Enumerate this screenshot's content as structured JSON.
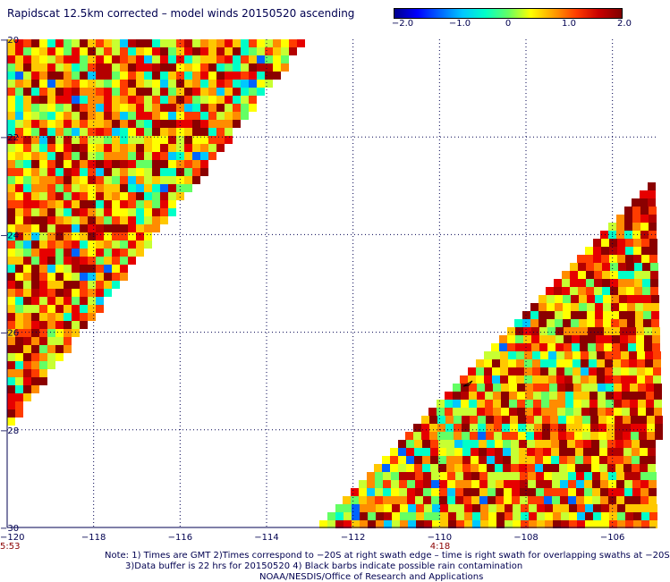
{
  "title": "Rapidscat 12.5km corrected – model winds 20150520 ascending",
  "colorbar": {
    "labels": [
      "−2.0",
      "−1.0",
      "0",
      "1.0",
      "2.0"
    ],
    "range": [
      -2.0,
      2.0
    ]
  },
  "axes": {
    "x_ticks": [
      "−120",
      "−118",
      "−116",
      "−114",
      "−112",
      "−110",
      "−108",
      "−106"
    ],
    "y_ticks": [
      "−20",
      "−22",
      "−24",
      "−26",
      "−28",
      "−30"
    ],
    "lon_range": [
      -120,
      -105
    ],
    "lat_range": [
      -30,
      -20
    ]
  },
  "times": {
    "left": "5:53",
    "middle": "4:18"
  },
  "notes": {
    "line1": "Note: 1) Times are GMT 2)Times correspond to −20S at right swath edge – time is right swath for overlapping swaths at −20S",
    "line2": "3)Data buffer is 22 hrs for 20150520 4) Black barbs indicate possible rain contamination",
    "line3": "NOAA/NESDIS/Office of Research and Applications"
  },
  "colors": {
    "text": "#000050",
    "time_label": "#8b0000",
    "grid": "#000050"
  }
}
